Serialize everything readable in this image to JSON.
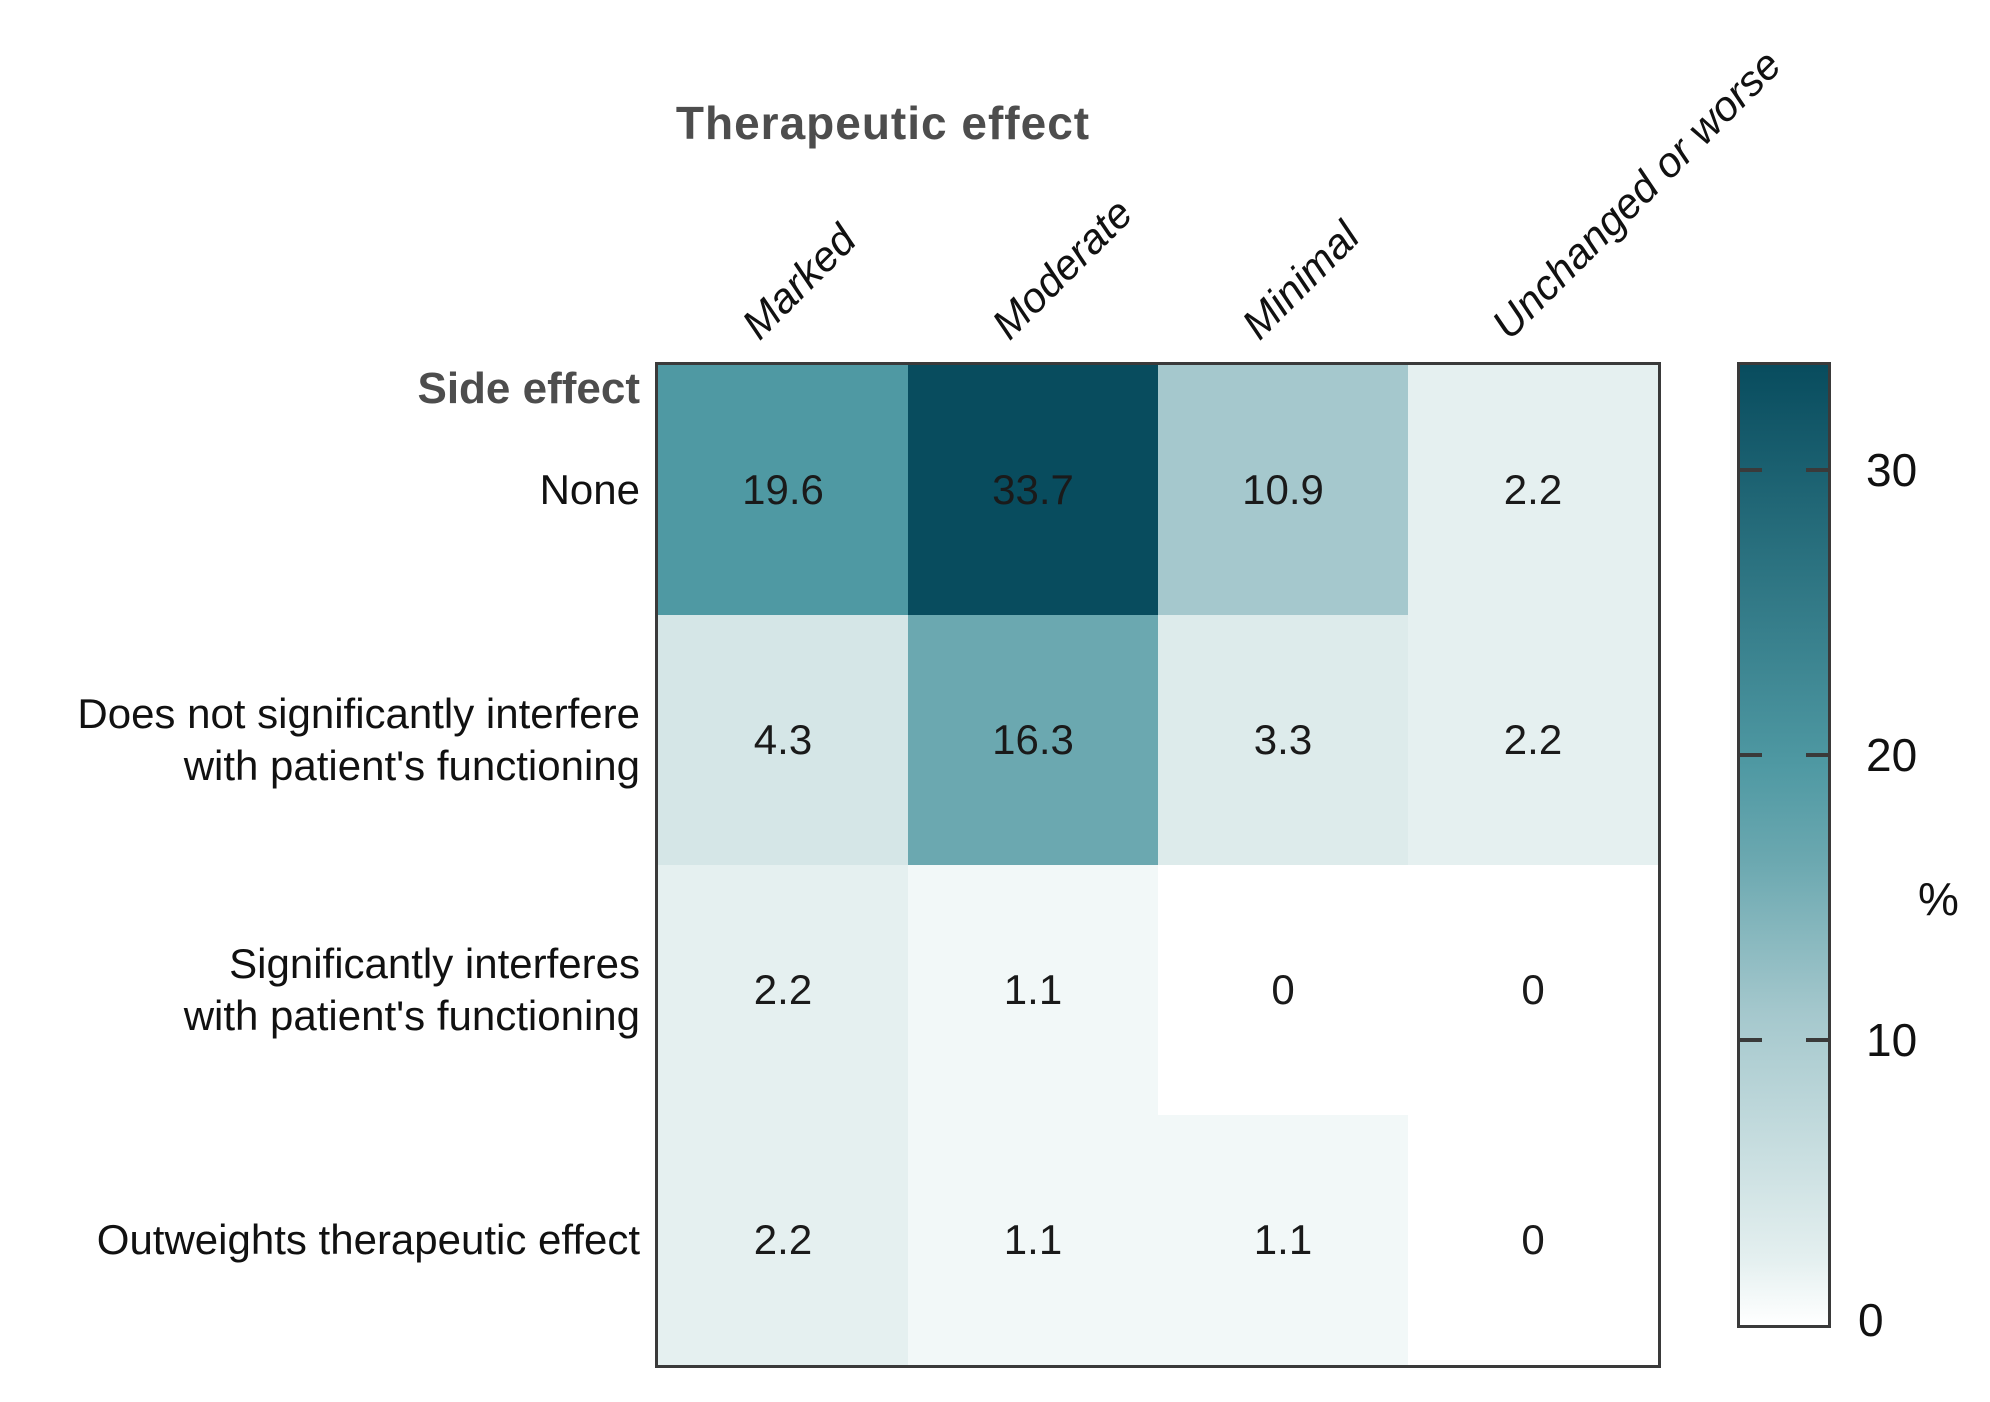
{
  "chart_data": {
    "type": "heatmap",
    "title": "Therapeutic effect",
    "row_axis_title": "Side effect",
    "columns": [
      "Marked",
      "Moderate",
      "Minimal",
      "Unchanged or worse"
    ],
    "rows": [
      [
        "None"
      ],
      [
        "Does not significantly interfere",
        "with patient's functioning"
      ],
      [
        "Significantly interferes",
        "with patient's functioning"
      ],
      [
        "Outweights therapeutic effect"
      ]
    ],
    "values": [
      [
        19.6,
        33.7,
        10.9,
        2.2
      ],
      [
        4.3,
        16.3,
        3.3,
        2.2
      ],
      [
        2.2,
        1.1,
        0,
        0
      ],
      [
        2.2,
        1.1,
        1.1,
        0
      ]
    ],
    "colorbar": {
      "label": "%",
      "ticks": [
        30,
        20,
        10,
        0
      ],
      "min": 0,
      "max": 33.7,
      "position": "right"
    },
    "colormap": [
      [
        0.0,
        "#ffffff"
      ],
      [
        0.033,
        "#f2f8f8"
      ],
      [
        0.065,
        "#e5f0f0"
      ],
      [
        0.128,
        "#d5e6e7"
      ],
      [
        0.323,
        "#a5c8cd"
      ],
      [
        0.484,
        "#6ba8b0"
      ],
      [
        0.582,
        "#4f99a3"
      ],
      [
        1.0,
        "#084c5e"
      ]
    ],
    "grid_lines": "off",
    "colors": {
      "border": "#3a3a3a",
      "title_text": "#4d4d4d",
      "label_text": "#111111",
      "max_cell": "#084c5e"
    }
  }
}
